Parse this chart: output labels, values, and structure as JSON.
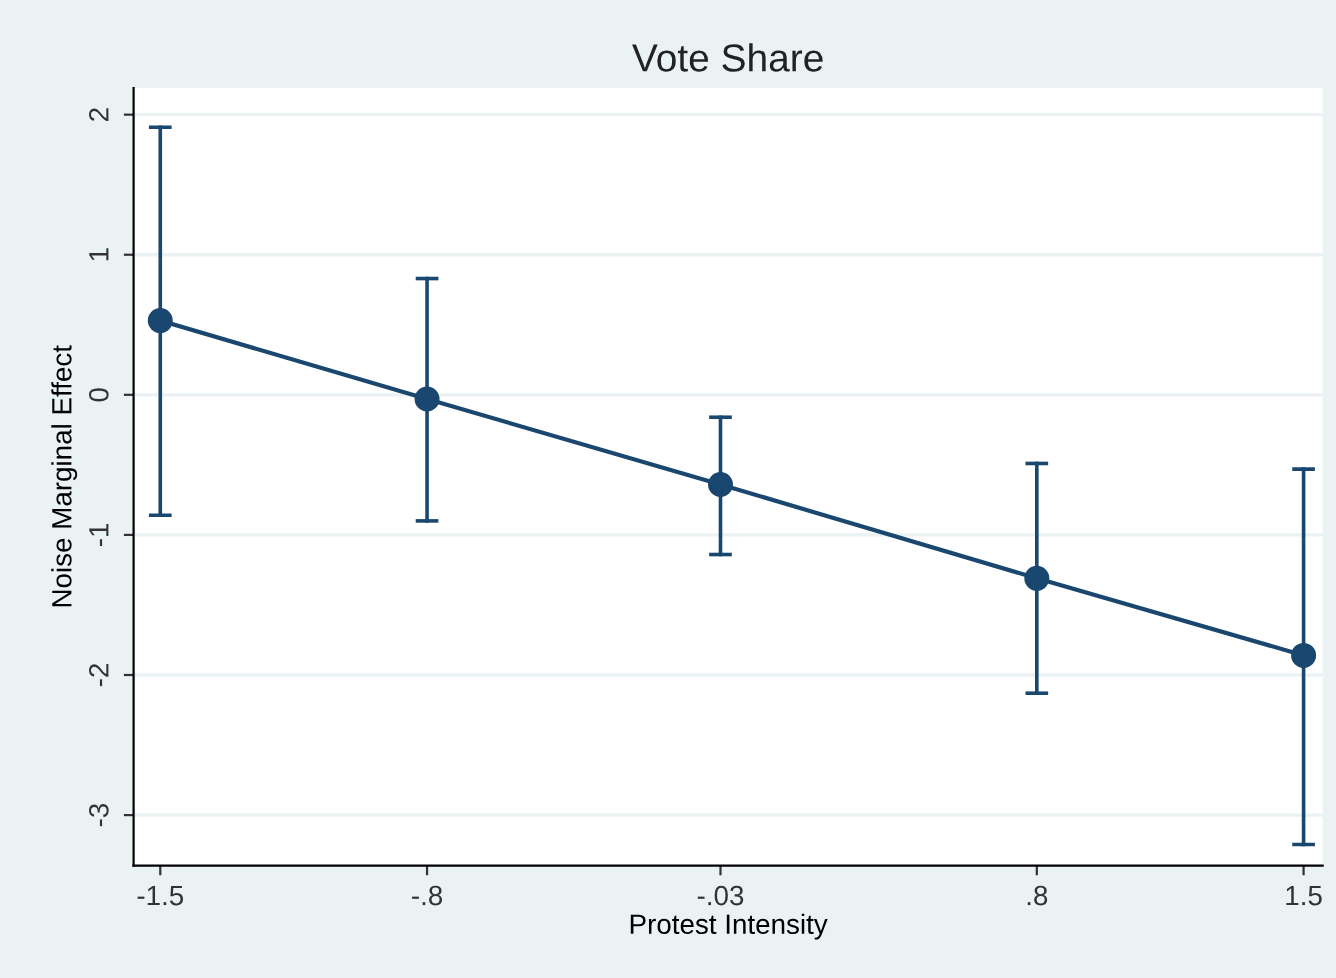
{
  "chart_data": {
    "type": "line",
    "title": "Vote Share",
    "xlabel": "Protest Intensity",
    "ylabel": "Noise Marginal Effect",
    "x": [
      -1.5,
      -0.8,
      -0.03,
      0.8,
      1.5
    ],
    "series": [
      {
        "color": "#1a476f",
        "values": [
          0.53,
          -0.03,
          -0.64,
          -1.31,
          -1.86
        ],
        "errors": [
          [
            -0.86,
            1.91
          ],
          [
            -0.9,
            0.83
          ],
          [
            -1.14,
            -0.16
          ],
          [
            -2.13,
            -0.49
          ],
          [
            -3.21,
            -0.53
          ]
        ]
      }
    ],
    "xlim": [
      -1.57,
      1.55
    ],
    "ylim": [
      -3.36,
      2.19
    ],
    "xticks": [
      -1.5,
      {
        "value": -0.8,
        "label": "-.8"
      },
      {
        "value": -0.03,
        "label": "-.03"
      },
      {
        "value": 0.8,
        "label": ".8"
      },
      1.5
    ],
    "yticks": [
      -3,
      -2,
      -1,
      0,
      1,
      2
    ],
    "grid": "y",
    "marker": "circle",
    "line_style": "solid"
  }
}
